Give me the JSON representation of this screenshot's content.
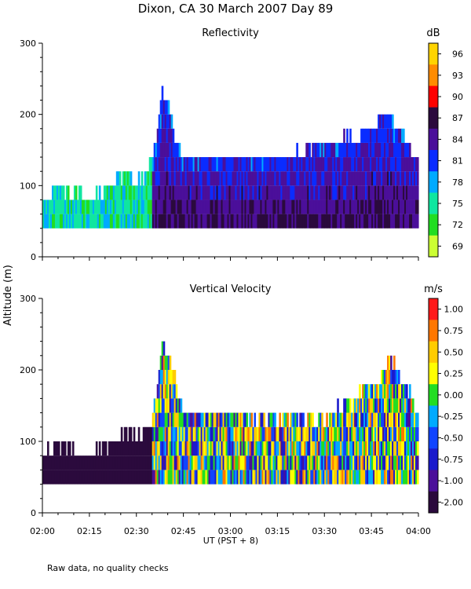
{
  "title": "Dixon, CA 30 March 2007  Day  89",
  "ylabel": "Altitude (m)",
  "xlabel": "UT  (PST + 8)",
  "footnote": "Raw data, no quality checks",
  "chart_data": [
    {
      "type": "heatmap",
      "title": "Reflectivity",
      "unit": "dB",
      "xlim": [
        "02:00",
        "04:00"
      ],
      "x_ticks": [
        "02:00",
        "02:15",
        "02:30",
        "02:45",
        "03:00",
        "03:15",
        "03:30",
        "03:45",
        "04:00"
      ],
      "ylim": [
        0,
        300
      ],
      "y_ticks": [
        "0",
        "100",
        "200",
        "300"
      ],
      "colorbar": {
        "labels": [
          "96",
          "93",
          "90",
          "87",
          "84",
          "81",
          "78",
          "75",
          "72",
          "69"
        ],
        "colors": [
          "#ffd400",
          "#ff8c00",
          "#ff0000",
          "#2b0a3d",
          "#4b0f9a",
          "#0a2cff",
          "#00aaff",
          "#10e6a0",
          "#22dd22",
          "#ccff33"
        ]
      },
      "echo_profile": [
        {
          "t": "02:00",
          "bottom": 40,
          "top": 80
        },
        {
          "t": "02:05",
          "bottom": 40,
          "top": 100
        },
        {
          "t": "02:15",
          "bottom": 40,
          "top": 80
        },
        {
          "t": "02:27",
          "bottom": 40,
          "top": 120
        },
        {
          "t": "02:30",
          "bottom": 40,
          "top": 100
        },
        {
          "t": "02:35",
          "bottom": 40,
          "top": 130
        },
        {
          "t": "02:36",
          "bottom": 40,
          "top": 170
        },
        {
          "t": "02:38",
          "bottom": 40,
          "top": 240
        },
        {
          "t": "02:40",
          "bottom": 40,
          "top": 220
        },
        {
          "t": "02:42",
          "bottom": 40,
          "top": 160
        },
        {
          "t": "02:45",
          "bottom": 40,
          "top": 140
        },
        {
          "t": "03:00",
          "bottom": 40,
          "top": 140
        },
        {
          "t": "03:20",
          "bottom": 40,
          "top": 140
        },
        {
          "t": "03:30",
          "bottom": 40,
          "top": 160
        },
        {
          "t": "03:46",
          "bottom": 40,
          "top": 180
        },
        {
          "t": "03:49",
          "bottom": 40,
          "top": 210
        },
        {
          "t": "03:52",
          "bottom": 40,
          "top": 180
        },
        {
          "t": "04:00",
          "bottom": 40,
          "top": 140
        }
      ]
    },
    {
      "type": "heatmap",
      "title": "Vertical Velocity",
      "unit": "m/s",
      "xlim": [
        "02:00",
        "04:00"
      ],
      "x_ticks": [
        "02:00",
        "02:15",
        "02:30",
        "02:45",
        "03:00",
        "03:15",
        "03:30",
        "03:45",
        "04:00"
      ],
      "ylim": [
        0,
        300
      ],
      "y_ticks": [
        "0",
        "100",
        "200",
        "300"
      ],
      "colorbar": {
        "labels": [
          "1.00",
          "0.75",
          "0.50",
          "0.25",
          "0.00",
          "-0.25",
          "-0.50",
          "-0.75",
          "-1.00",
          "-2.00"
        ],
        "colors": [
          "#ff1a1a",
          "#ff7700",
          "#ffcc00",
          "#ffff00",
          "#22dd22",
          "#00aaff",
          "#1144ff",
          "#1a1acc",
          "#4b0f9a",
          "#2b0a3d"
        ]
      },
      "echo_profile": [
        {
          "t": "02:00",
          "bottom": 40,
          "top": 80
        },
        {
          "t": "02:05",
          "bottom": 40,
          "top": 100
        },
        {
          "t": "02:15",
          "bottom": 40,
          "top": 80
        },
        {
          "t": "02:27",
          "bottom": 40,
          "top": 110
        },
        {
          "t": "02:30",
          "bottom": 40,
          "top": 100
        },
        {
          "t": "02:35",
          "bottom": 40,
          "top": 130
        },
        {
          "t": "02:38",
          "bottom": 40,
          "top": 240
        },
        {
          "t": "02:40",
          "bottom": 40,
          "top": 220
        },
        {
          "t": "02:45",
          "bottom": 40,
          "top": 140
        },
        {
          "t": "03:00",
          "bottom": 40,
          "top": 140
        },
        {
          "t": "03:30",
          "bottom": 40,
          "top": 130
        },
        {
          "t": "03:46",
          "bottom": 40,
          "top": 180
        },
        {
          "t": "03:50",
          "bottom": 40,
          "top": 220
        },
        {
          "t": "04:00",
          "bottom": 40,
          "top": 140
        }
      ]
    }
  ]
}
